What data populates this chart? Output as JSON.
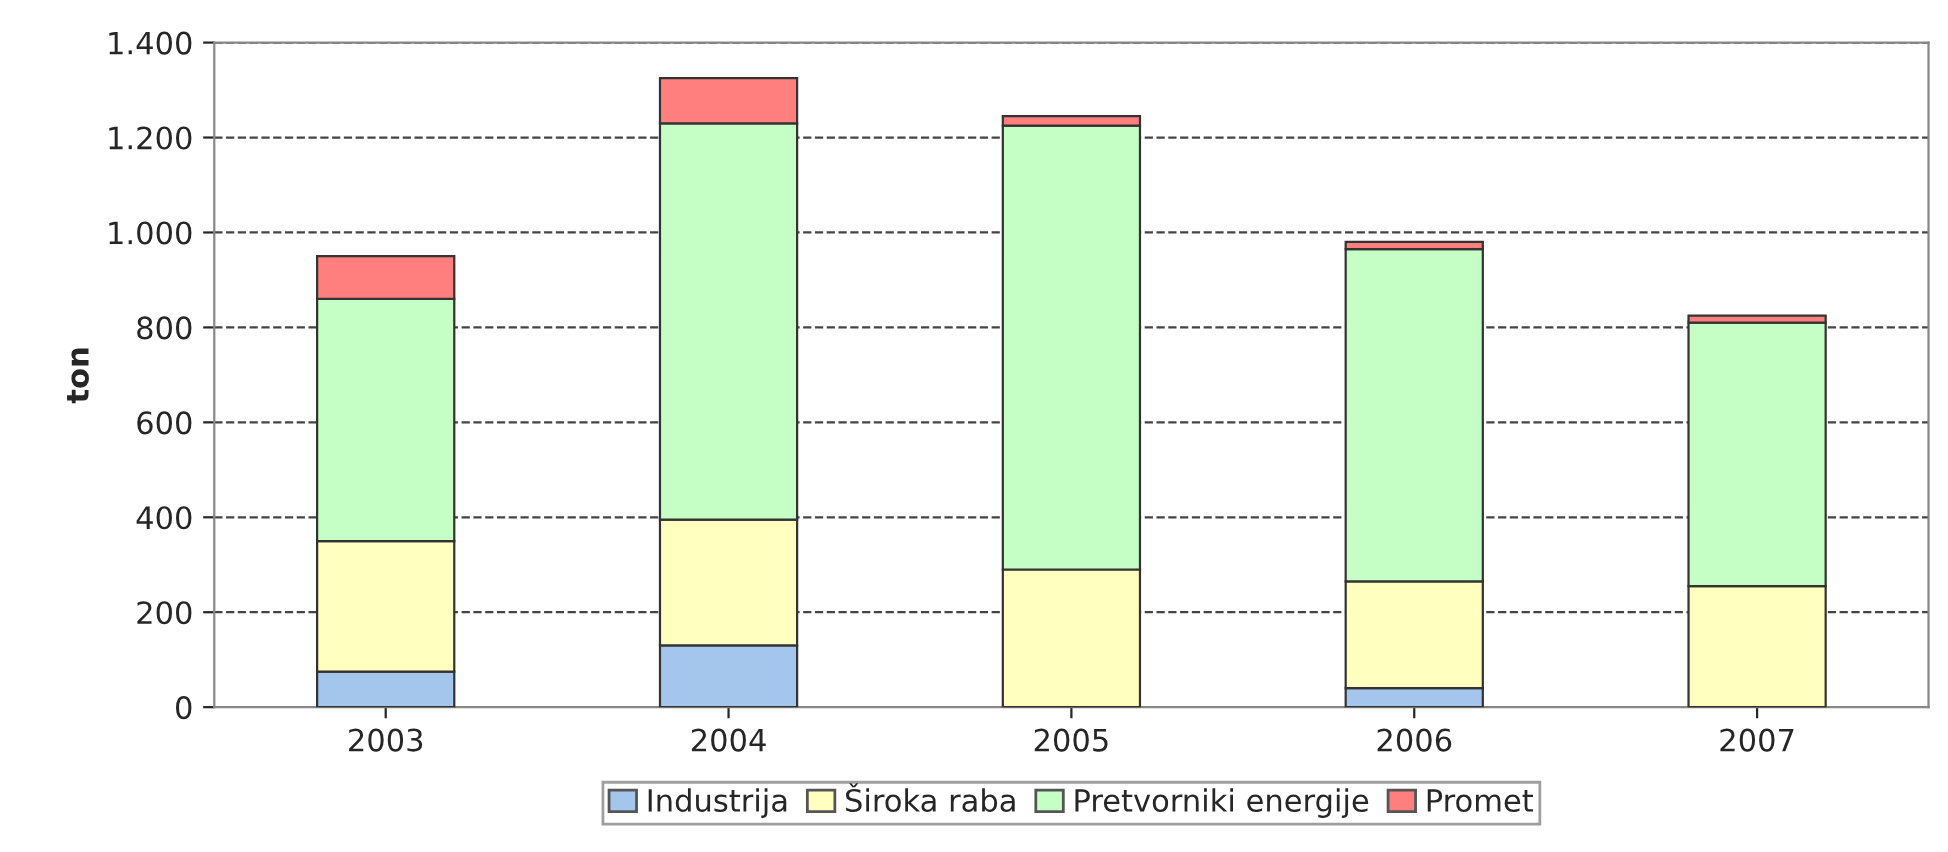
{
  "chart_data": {
    "type": "bar",
    "stacked": true,
    "ylabel": "ton",
    "categories": [
      "2003",
      "2004",
      "2005",
      "2006",
      "2007"
    ],
    "series": [
      {
        "name": "Industrija",
        "color": "#a4c6ec",
        "values": [
          75,
          130,
          0,
          40,
          0
        ]
      },
      {
        "name": "Široka raba",
        "color": "#ffffc0",
        "values": [
          275,
          265,
          290,
          225,
          255
        ]
      },
      {
        "name": "Pretvorniki energije",
        "color": "#c6ffc6",
        "values": [
          510,
          835,
          935,
          700,
          555
        ]
      },
      {
        "name": "Promet",
        "color": "#ff7f7f",
        "values": [
          90,
          95,
          20,
          15,
          15
        ]
      }
    ],
    "ylim": [
      0,
      1400
    ],
    "yticks": [
      0,
      200,
      400,
      600,
      800,
      {
        "value": 1000,
        "label": "1.000"
      },
      {
        "value": 1200,
        "label": "1.200"
      },
      {
        "value": 1400,
        "label": "1.400"
      }
    ],
    "grid": "y",
    "line_style": "dashed",
    "legend": "bottom"
  }
}
